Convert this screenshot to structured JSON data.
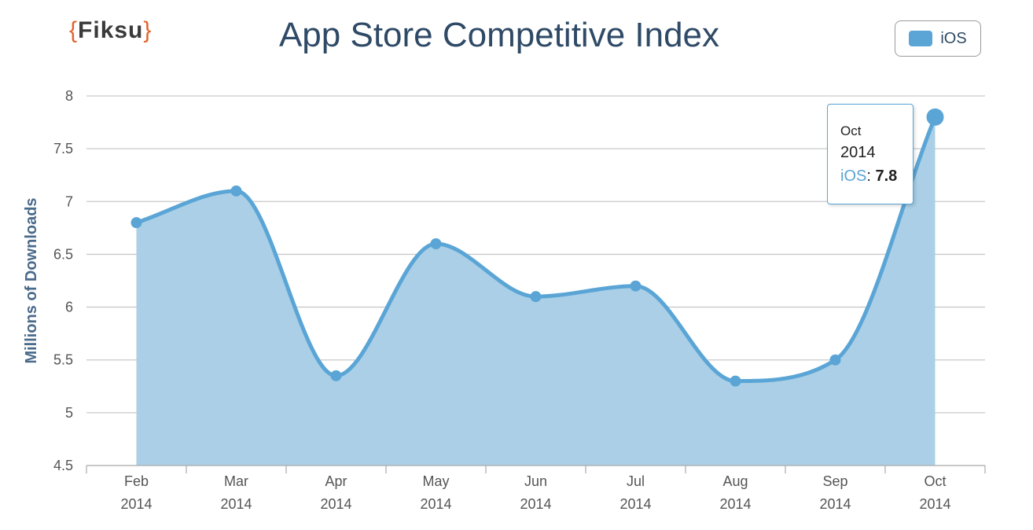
{
  "logo": {
    "open": "{",
    "text": "Fiksu",
    "close": "}"
  },
  "chart_data": {
    "type": "area",
    "title": "App Store Competitive Index",
    "ylabel": "Millions of Downloads",
    "xlabel": "",
    "categories": [
      [
        "Feb",
        "2014"
      ],
      [
        "Mar",
        "2014"
      ],
      [
        "Apr",
        "2014"
      ],
      [
        "May",
        "2014"
      ],
      [
        "Jun",
        "2014"
      ],
      [
        "Jul",
        "2014"
      ],
      [
        "Aug",
        "2014"
      ],
      [
        "Sep",
        "2014"
      ],
      [
        "Oct",
        "2014"
      ]
    ],
    "series": [
      {
        "name": "iOS",
        "values": [
          6.8,
          7.1,
          5.35,
          6.6,
          6.1,
          6.2,
          5.3,
          5.5,
          7.8
        ]
      }
    ],
    "ylim": [
      4.5,
      8
    ],
    "yticks": [
      "4.5",
      "5",
      "5.5",
      "6",
      "6.5",
      "7",
      "7.5",
      "8"
    ],
    "grid": true,
    "legend": "top-right",
    "colors": {
      "line": "#5aa5d6",
      "fill": "#aacfe6",
      "grid": "#c9c9c9",
      "axis_text": "#555555",
      "ylabel": "#4a6a8a"
    }
  },
  "legend": {
    "label": "iOS"
  },
  "tooltip": {
    "month": "Oct",
    "year": "2014",
    "series": "iOS",
    "sep": ": ",
    "value": "7.8"
  }
}
